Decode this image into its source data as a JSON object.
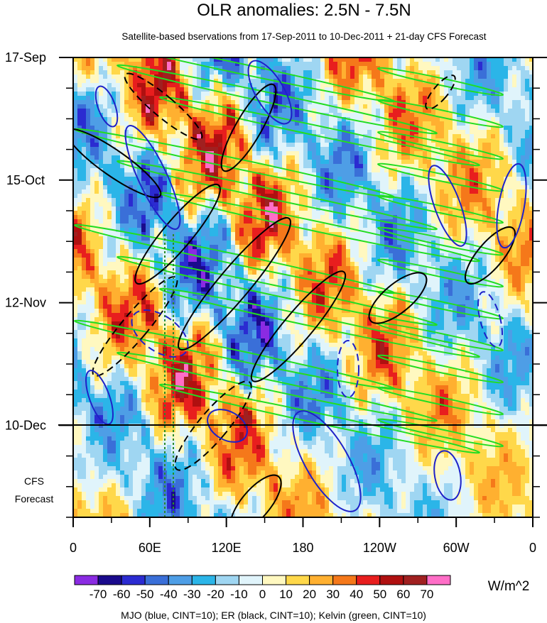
{
  "chart_data": {
    "type": "heatmap",
    "title": "OLR anomalies: 2.5N - 7.5N",
    "subtitle": "Satellite-based bservations from 17-Sep-2011 to 10-Dec-2011 + 21-day CFS Forecast",
    "x_ticks": [
      "0",
      "60E",
      "120E",
      "180",
      "120W",
      "60W",
      "0"
    ],
    "x_tick_degrees": [
      0,
      60,
      120,
      180,
      240,
      300,
      360
    ],
    "xlim": [
      0,
      360
    ],
    "y_ticks": [
      "17-Sep",
      "15-Oct",
      "12-Nov",
      "10-Dec"
    ],
    "y_tick_days": [
      0,
      28,
      56,
      84
    ],
    "ylim_days": [
      0,
      105
    ],
    "forecast_label": [
      "CFS",
      "Forecast"
    ],
    "forecast_start_day": 84,
    "colorbar": {
      "levels": [
        -70,
        -60,
        -50,
        -40,
        -30,
        -20,
        -10,
        0,
        10,
        20,
        30,
        40,
        50,
        60,
        70
      ],
      "labels": [
        "-70",
        "-60",
        "-50",
        "-40",
        "-30",
        "-20",
        "-10",
        "0",
        "10",
        "20",
        "30",
        "40",
        "50",
        "60",
        "70"
      ],
      "colors": [
        "#8a2be2",
        "#1a0a8c",
        "#2b2bd1",
        "#3a6fd8",
        "#4e9ee6",
        "#2bb5e8",
        "#9fd6f2",
        "#e0f4fb",
        "#fff8c0",
        "#ffd84a",
        "#ffb030",
        "#f5781a",
        "#e81e1e",
        "#b01010",
        "#a02020",
        "#ff6ec7"
      ],
      "units": "W/m^2"
    },
    "footer": "MJO (blue, CINT=10); ER (black, CINT=10); Kelvin (green, CINT=10)",
    "contour_series": [
      {
        "name": "MJO",
        "color": "#1e22c8"
      },
      {
        "name": "ER",
        "color": "#000000"
      },
      {
        "name": "Kelvin",
        "color": "#22dd22"
      }
    ]
  }
}
